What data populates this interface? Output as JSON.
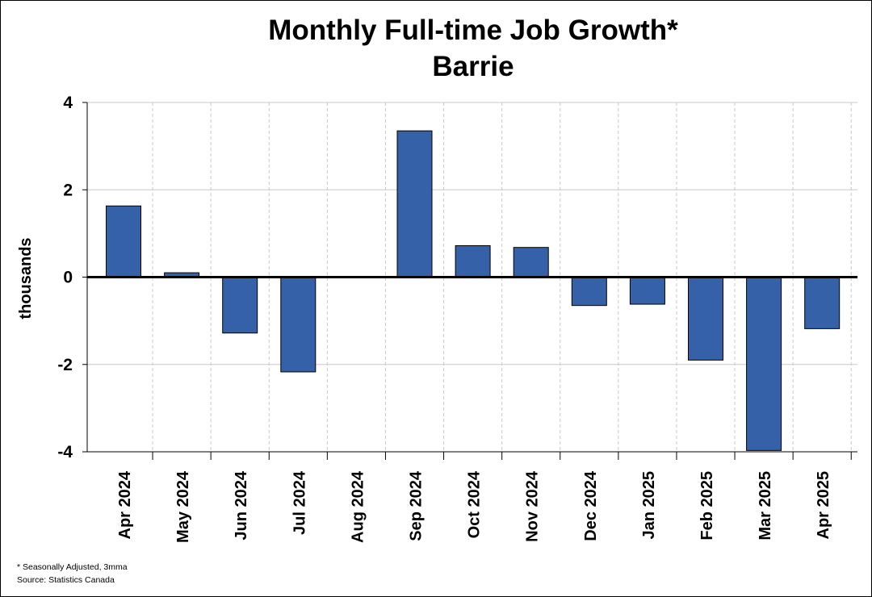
{
  "chart_data": {
    "type": "bar",
    "title": "Monthly Full-time Job Growth*",
    "subtitle": "Barrie",
    "ylabel": "thousands",
    "xlabel": "",
    "ylim": [
      -4,
      4
    ],
    "yticks": [
      "4",
      "2",
      "0",
      "-2",
      "-4"
    ],
    "ytick_values": [
      4,
      2,
      0,
      -2,
      -4
    ],
    "grid": true,
    "categories": [
      "Apr 2024",
      "May 2024",
      "Jun 2024",
      "Jul 2024",
      "Aug 2024",
      "Sep 2024",
      "Oct 2024",
      "Nov 2024",
      "Dec 2024",
      "Jan 2025",
      "Feb 2025",
      "Mar 2025",
      "Apr 2025"
    ],
    "values": [
      1.63,
      0.1,
      -1.28,
      -2.17,
      0,
      3.35,
      0.72,
      0.68,
      -0.65,
      -0.62,
      -1.9,
      -3.97,
      -1.18
    ],
    "bar_color": "#3461a8",
    "footnotes": [
      "* Seasonally Adjusted, 3mma",
      "Source: Statistics Canada"
    ]
  }
}
